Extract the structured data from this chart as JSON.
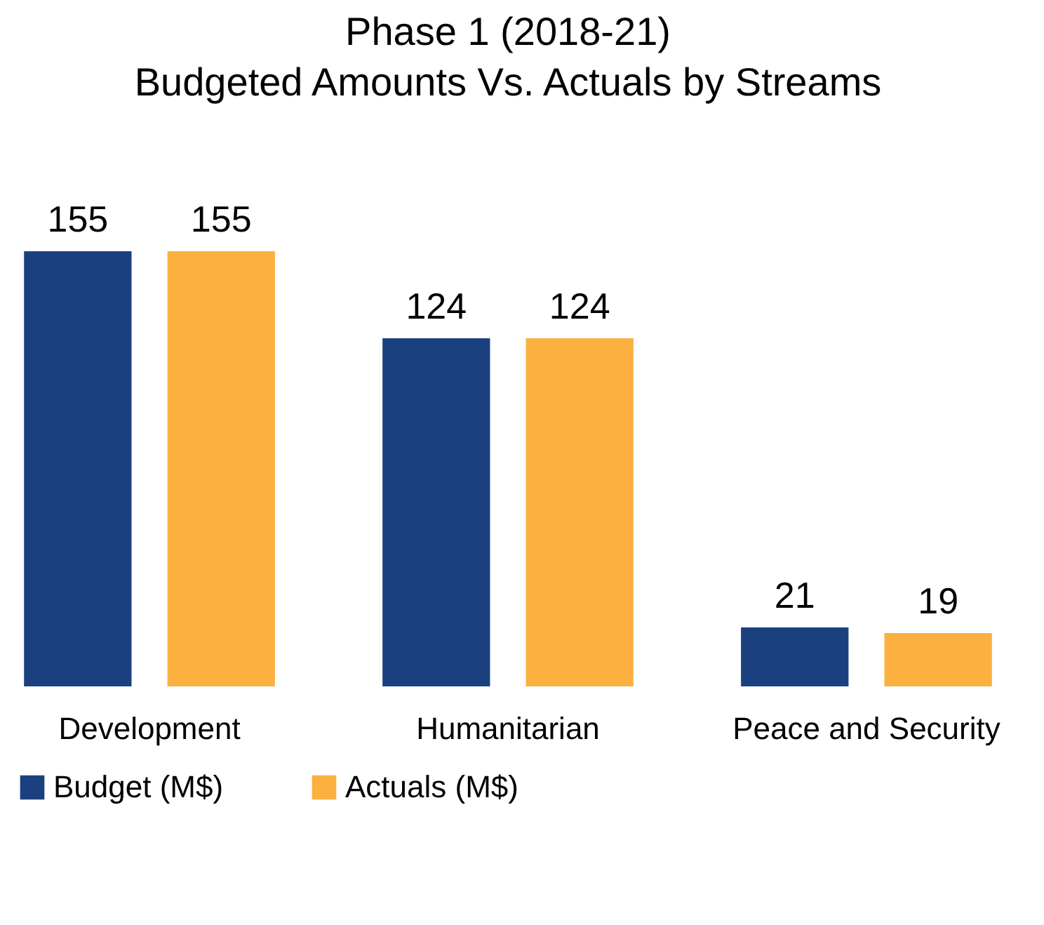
{
  "chart_data": {
    "type": "bar",
    "title": "Phase 1 (2018-21)",
    "subtitle": "Budgeted Amounts Vs. Actuals by Streams",
    "categories": [
      "Development",
      "Humanitarian",
      "Peace and Security"
    ],
    "series": [
      {
        "name": "Budget (M$)",
        "color": "#1a4080",
        "values": [
          155,
          124,
          21
        ]
      },
      {
        "name": "Actuals (M$)",
        "color": "#fbb040",
        "values": [
          155,
          124,
          19
        ]
      }
    ],
    "data_labels": true,
    "legend": "bottom"
  }
}
